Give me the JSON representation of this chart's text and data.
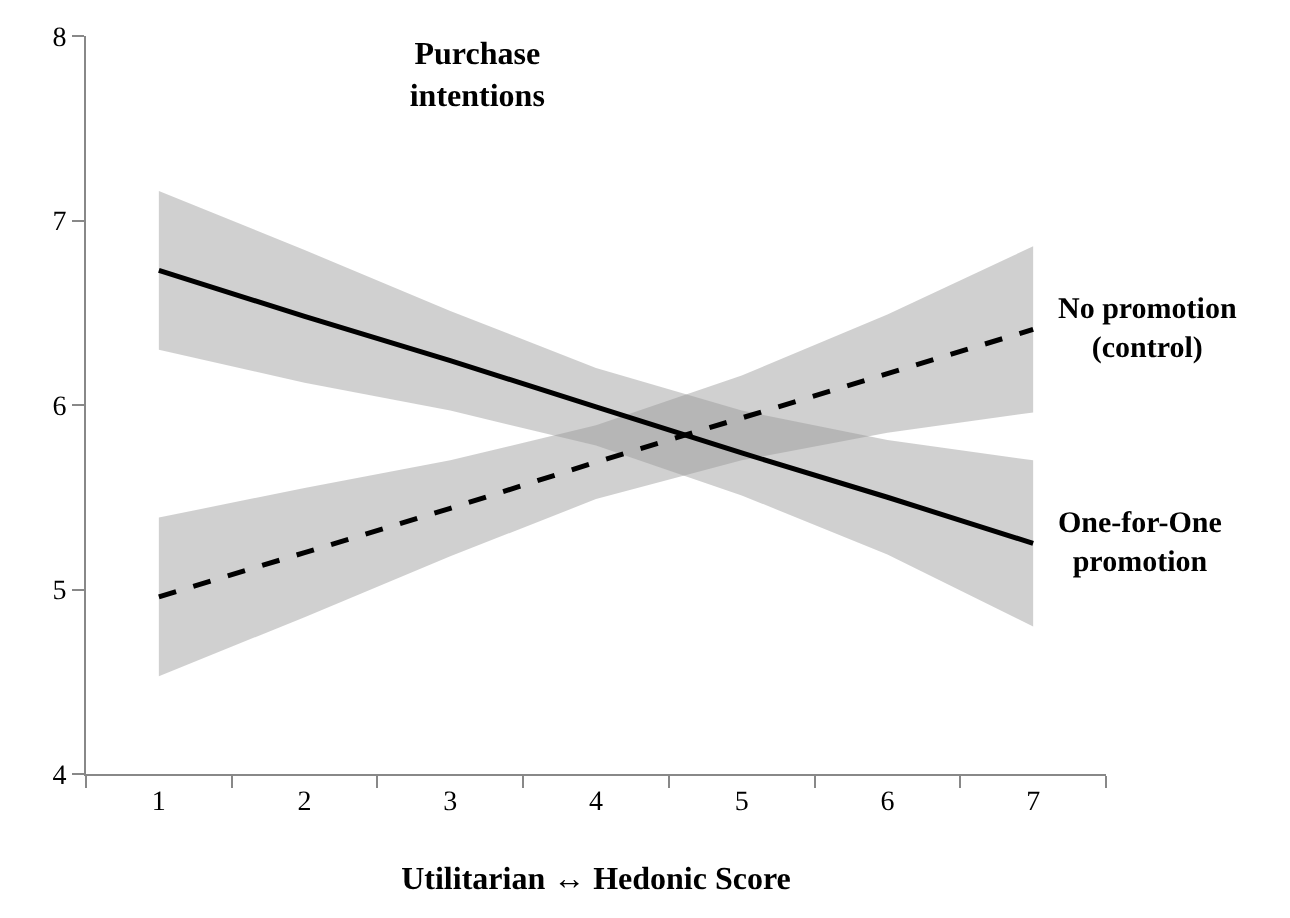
{
  "chart_data": {
    "type": "line",
    "title": "Purchase\nintentions",
    "xlabel": "Utilitarian ↔ Hedonic Score",
    "x": [
      1,
      2,
      3,
      4,
      5,
      6,
      7
    ],
    "series": [
      {
        "name": "No promotion\n(control)",
        "color": "#000000",
        "line_style": "dashed",
        "values": [
          4.96,
          5.2,
          5.44,
          5.69,
          5.93,
          6.17,
          6.41
        ],
        "lower": [
          4.53,
          4.85,
          5.18,
          5.49,
          5.7,
          5.85,
          5.96
        ],
        "upper": [
          5.39,
          5.55,
          5.7,
          5.89,
          6.16,
          6.49,
          6.86
        ]
      },
      {
        "name": "One-for-One\npromotion",
        "color": "#000000",
        "line_style": "solid",
        "values": [
          6.73,
          6.48,
          6.24,
          5.99,
          5.74,
          5.5,
          5.25
        ],
        "lower": [
          6.3,
          6.12,
          5.97,
          5.78,
          5.51,
          5.19,
          4.8
        ],
        "upper": [
          7.16,
          6.84,
          6.51,
          6.2,
          5.97,
          5.81,
          5.7
        ]
      }
    ],
    "xlim": [
      0.5,
      7.5
    ],
    "xticks": [
      {
        "value": 0.5,
        "label": null
      },
      1,
      {
        "value": 1.5,
        "label": null
      },
      2,
      {
        "value": 2.5,
        "label": null
      },
      3,
      {
        "value": 3.5,
        "label": null
      },
      4,
      {
        "value": 4.5,
        "label": null
      },
      5,
      {
        "value": 5.5,
        "label": null
      },
      6,
      {
        "value": 6.5,
        "label": null
      },
      7,
      {
        "value": 7.5,
        "label": null
      }
    ],
    "ylim": [
      4,
      8
    ],
    "yticks": [
      4,
      5,
      6,
      7,
      8
    ],
    "legend": false,
    "marker": "none"
  }
}
